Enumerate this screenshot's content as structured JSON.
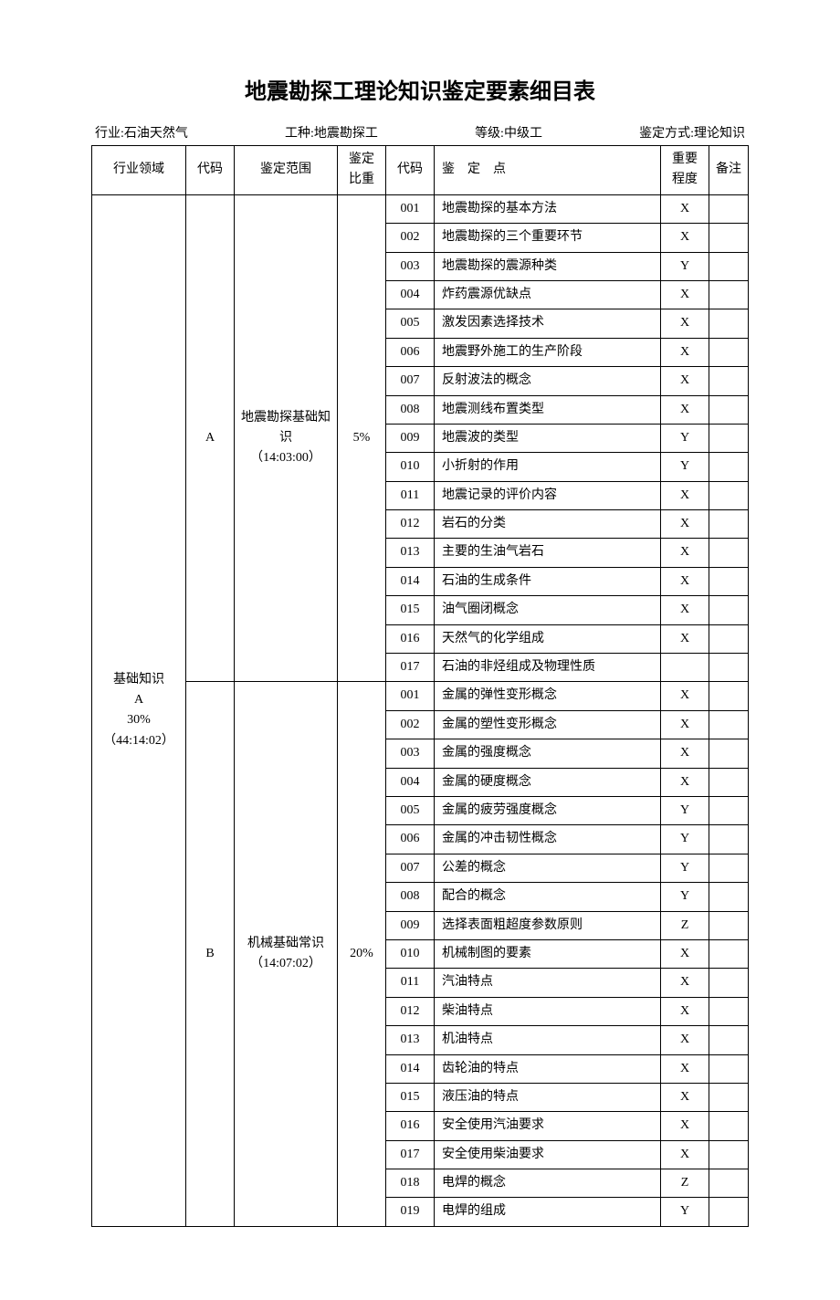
{
  "title": "地震勘探工理论知识鉴定要素细目表",
  "meta": {
    "industry_label": "行业:石油天然气",
    "job_label": "工种:地震勘探工",
    "level_label": "等级:中级工",
    "mode_label": "鉴定方式:理论知识"
  },
  "headers": {
    "domain": "行业领域",
    "code1": "代码",
    "scope": "鉴定范围",
    "weight": "鉴定比重",
    "code2": "代码",
    "point": "鉴　定　点",
    "level": "重要程度",
    "remark": "备注"
  },
  "domain_block": {
    "line1": "基础知识",
    "line2": "A",
    "line3": "30%",
    "line4": "（44:14:02）"
  },
  "sections": [
    {
      "code": "A",
      "scope_line1": "地震勘探基础知识",
      "scope_line2": "（14:03:00）",
      "weight": "5%",
      "rows": [
        {
          "c": "001",
          "p": "地震勘探的基本方法",
          "l": "X"
        },
        {
          "c": "002",
          "p": "地震勘探的三个重要环节",
          "l": "X"
        },
        {
          "c": "003",
          "p": "地震勘探的震源种类",
          "l": "Y"
        },
        {
          "c": "004",
          "p": "炸药震源优缺点",
          "l": "X"
        },
        {
          "c": "005",
          "p": "激发因素选择技术",
          "l": "X"
        },
        {
          "c": "006",
          "p": "地震野外施工的生产阶段",
          "l": "X"
        },
        {
          "c": "007",
          "p": "反射波法的概念",
          "l": "X"
        },
        {
          "c": "008",
          "p": "地震测线布置类型",
          "l": "X"
        },
        {
          "c": "009",
          "p": "地震波的类型",
          "l": "Y"
        },
        {
          "c": "010",
          "p": "小折射的作用",
          "l": "Y"
        },
        {
          "c": "011",
          "p": "地震记录的评价内容",
          "l": "X"
        },
        {
          "c": "012",
          "p": "岩石的分类",
          "l": "X"
        },
        {
          "c": "013",
          "p": "主要的生油气岩石",
          "l": "X"
        },
        {
          "c": "014",
          "p": "石油的生成条件",
          "l": "X"
        },
        {
          "c": "015",
          "p": "油气圈闭概念",
          "l": "X"
        },
        {
          "c": "016",
          "p": "天然气的化学组成",
          "l": "X"
        },
        {
          "c": "017",
          "p": "石油的非烃组成及物理性质",
          "l": ""
        }
      ]
    },
    {
      "code": "B",
      "scope_line1": "机械基础常识",
      "scope_line2": "（14:07:02）",
      "weight": "20%",
      "rows": [
        {
          "c": "001",
          "p": "金属的弹性变形概念",
          "l": "X"
        },
        {
          "c": "002",
          "p": "金属的塑性变形概念",
          "l": "X"
        },
        {
          "c": "003",
          "p": "金属的强度概念",
          "l": "X"
        },
        {
          "c": "004",
          "p": "金属的硬度概念",
          "l": "X"
        },
        {
          "c": "005",
          "p": "金属的疲劳强度概念",
          "l": "Y"
        },
        {
          "c": "006",
          "p": "金属的冲击韧性概念",
          "l": "Y"
        },
        {
          "c": "007",
          "p": "公差的概念",
          "l": "Y"
        },
        {
          "c": "008",
          "p": "配合的概念",
          "l": "Y"
        },
        {
          "c": "009",
          "p": "选择表面粗超度参数原则",
          "l": "Z"
        },
        {
          "c": "010",
          "p": "机械制图的要素",
          "l": "X"
        },
        {
          "c": "011",
          "p": "汽油特点",
          "l": "X"
        },
        {
          "c": "012",
          "p": "柴油特点",
          "l": "X"
        },
        {
          "c": "013",
          "p": "机油特点",
          "l": "X"
        },
        {
          "c": "014",
          "p": "齿轮油的特点",
          "l": "X"
        },
        {
          "c": "015",
          "p": "液压油的特点",
          "l": "X"
        },
        {
          "c": "016",
          "p": "安全使用汽油要求",
          "l": "X"
        },
        {
          "c": "017",
          "p": "安全使用柴油要求",
          "l": "X"
        },
        {
          "c": "018",
          "p": "电焊的概念",
          "l": "Z"
        },
        {
          "c": "019",
          "p": "电焊的组成",
          "l": "Y"
        }
      ]
    }
  ]
}
